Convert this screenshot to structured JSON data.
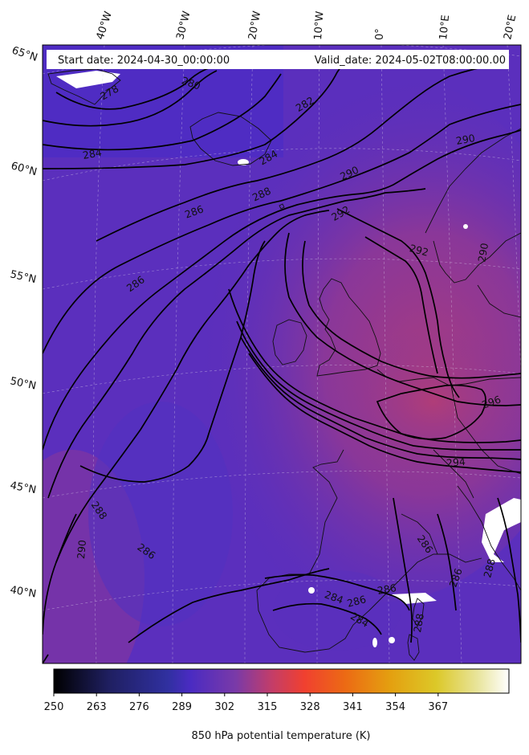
{
  "header": {
    "start_date": "Start date: 2024-04-30_00:00:00",
    "valid_date": "Valid_date: 2024-05-02T08:00:00.00"
  },
  "longitude_labels": [
    "40°W",
    "30°W",
    "20°W",
    "10°W",
    "0°",
    "10°E",
    "20°E"
  ],
  "latitude_labels": [
    "65°N",
    "60°N",
    "55°N",
    "50°N",
    "45°N",
    "40°N"
  ],
  "contour_labels": [
    "278",
    "280",
    "282",
    "284",
    "284",
    "286",
    "286",
    "286",
    "286",
    "286",
    "286",
    "288",
    "288",
    "288",
    "288",
    "290",
    "290",
    "290",
    "290",
    "292",
    "292",
    "294",
    "296",
    "284",
    "284",
    "286"
  ],
  "colorbar": {
    "title": "850 hPa potential temperature (K)",
    "ticks": [
      "250",
      "263",
      "276",
      "289",
      "302",
      "315",
      "328",
      "341",
      "354",
      "367"
    ],
    "colormap": "CMRmap-like",
    "colors": [
      "#000000",
      "#2a2a80",
      "#4a2bc2",
      "#8a3aa8",
      "#c8405e",
      "#f0502a",
      "#e88a10",
      "#e0c020",
      "#e8e080",
      "#ffffff"
    ]
  },
  "field": {
    "variable": "850 hPa potential temperature",
    "units": "K",
    "dominant_colors": [
      "#5a2dbd",
      "#6a2fb0",
      "#8a3a9a",
      "#a03a85"
    ]
  }
}
